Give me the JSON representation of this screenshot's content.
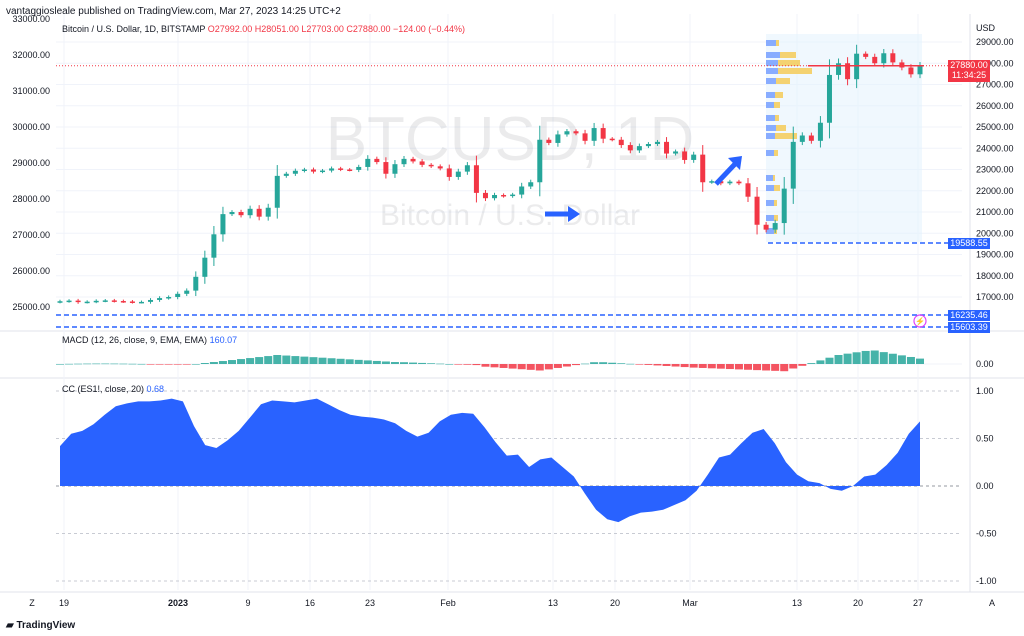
{
  "header": {
    "published": "vantaggiosleale published on TradingView.com, Mar 27, 2023 14:25 UTC+2"
  },
  "footer": {
    "brand": "TradingView",
    "corner_left": "Z",
    "corner_right": "A"
  },
  "legend": {
    "symbol": "Bitcoin / U.S. Dollar, 1D, BITSTAMP",
    "open": "O27992.00",
    "high": "H28051.00",
    "low": "L27703.00",
    "close": "C27880.00",
    "change": "−124.00 (−0.44%)",
    "macd_label": "MACD (12, 26, close, 9, EMA, EMA)",
    "macd_value": "160.07",
    "cc_label": "CC (ES1!, close, 20)",
    "cc_value": "0.68"
  },
  "watermark": {
    "symbol": "BTCUSD, 1D",
    "name": "Bitcoin / U.S. Dollar"
  },
  "colors": {
    "up": "#26a69a",
    "down": "#f23645",
    "accent": "#2962ff",
    "cc_fill": "#2962ff",
    "vp_up": "#f5c542",
    "vp_down": "#5b8cff"
  },
  "chart_data": [
    {
      "type": "candlestick",
      "title": "Bitcoin / U.S. Dollar, 1D, BITSTAMP",
      "currency": "USD",
      "x_ticks": [
        "19",
        "2023",
        "9",
        "16",
        "23",
        "Feb",
        "13",
        "20",
        "Mar",
        "13",
        "20",
        "27"
      ],
      "y_ticks_left": [
        33000,
        32000,
        31000,
        30000,
        29000,
        28000,
        27000,
        26000,
        25000
      ],
      "y_ticks_right": [
        29000,
        28000,
        27000,
        26000,
        25000,
        24000,
        23000,
        22000,
        21000,
        20000,
        19000,
        18000,
        17000
      ],
      "last_price": "27880.00",
      "countdown": "11:34:25",
      "levels": [
        "19588.55",
        "16235.46",
        "15603.39"
      ],
      "candles_close_approx": [
        16800,
        16830,
        16760,
        16780,
        16820,
        16840,
        16810,
        16790,
        16760,
        16770,
        16860,
        16950,
        17000,
        17150,
        17300,
        17950,
        18850,
        19950,
        20900,
        21000,
        20850,
        21150,
        20780,
        21200,
        22700,
        22800,
        22940,
        23000,
        22900,
        22950,
        23050,
        23000,
        22980,
        23120,
        23500,
        23350,
        22800,
        23250,
        23500,
        23380,
        23220,
        23150,
        23050,
        22650,
        22900,
        23200,
        21900,
        21650,
        21800,
        21750,
        21820,
        22200,
        22400,
        24400,
        24250,
        24650,
        24800,
        24700,
        24350,
        24950,
        24450,
        24400,
        24150,
        23900,
        24100,
        24200,
        24300,
        23750,
        23850,
        23450,
        23700,
        22400,
        22450,
        22350,
        22430,
        22350,
        21720,
        20400,
        20170,
        20480,
        22100,
        24300,
        24600,
        24350,
        25200,
        27450,
        28000,
        27250,
        28450,
        28300,
        28000,
        28470,
        28040,
        27800,
        27480,
        27880
      ],
      "macd_value": "160.07"
    },
    {
      "type": "area",
      "title": "CC (ES1!, close, 20)",
      "y_ticks": [
        1.0,
        0.5,
        0.0,
        -0.5,
        -1.0
      ],
      "last_value": 0.68,
      "values_approx": [
        0.42,
        0.55,
        0.58,
        0.65,
        0.75,
        0.84,
        0.87,
        0.89,
        0.89,
        0.9,
        0.92,
        0.89,
        0.63,
        0.43,
        0.4,
        0.48,
        0.58,
        0.72,
        0.86,
        0.9,
        0.89,
        0.88,
        0.9,
        0.92,
        0.86,
        0.8,
        0.75,
        0.73,
        0.72,
        0.7,
        0.66,
        0.58,
        0.52,
        0.56,
        0.68,
        0.75,
        0.77,
        0.76,
        0.62,
        0.46,
        0.32,
        0.33,
        0.2,
        0.28,
        0.3,
        0.2,
        0.1,
        -0.08,
        -0.25,
        -0.35,
        -0.38,
        -0.32,
        -0.28,
        -0.27,
        -0.25,
        -0.2,
        -0.15,
        -0.05,
        0.12,
        0.3,
        0.33,
        0.45,
        0.56,
        0.6,
        0.45,
        0.25,
        0.12,
        0.05,
        0.03,
        -0.03,
        -0.05,
        0.0,
        0.1,
        0.12,
        0.22,
        0.35,
        0.55,
        0.68
      ]
    }
  ]
}
